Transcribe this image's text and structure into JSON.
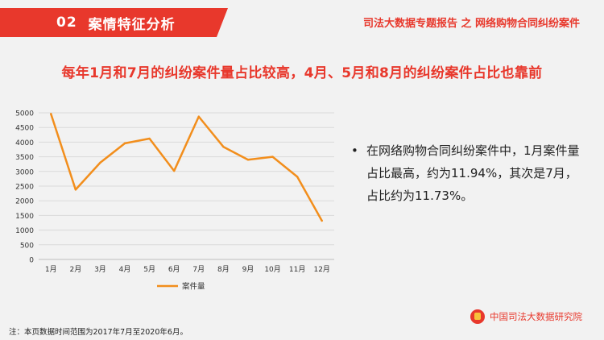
{
  "header": {
    "section_number": "02",
    "section_title": "案情特征分析",
    "report_title": "司法大数据专题报告 之 网络购物合同纠纷案件"
  },
  "headline": "每年1月和7月的纠纷案件量占比较高，4月、5月和8月的纠纷案件占比也靠前",
  "note": {
    "bullet": "•",
    "text": "在网络购物合同纠纷案件中，1月案件量占比最高，约为11.94%，其次是7月，占比约为11.73%。"
  },
  "footnote": "注：本页数据时间范围为2017年7月至2020年6月。",
  "institute": "中国司法大数据研究院",
  "colors": {
    "accent": "#e8382c",
    "series": "#f28e1c"
  },
  "chart_data": {
    "type": "line",
    "categories": [
      "1月",
      "2月",
      "3月",
      "4月",
      "5月",
      "6月",
      "7月",
      "8月",
      "9月",
      "10月",
      "11月",
      "12月"
    ],
    "series": [
      {
        "name": "案件量",
        "values": [
          4960,
          2380,
          3300,
          3960,
          4120,
          3020,
          4870,
          3840,
          3400,
          3500,
          2820,
          1320
        ]
      }
    ],
    "ylim": [
      0,
      5000
    ],
    "yticks": [
      0,
      500,
      1000,
      1500,
      2000,
      2500,
      3000,
      3500,
      4000,
      4500,
      5000
    ],
    "grid": true,
    "legend": "bottom"
  }
}
